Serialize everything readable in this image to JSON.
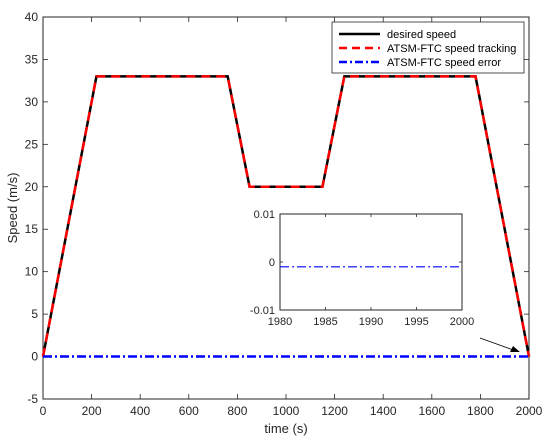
{
  "chart_data": [
    {
      "type": "line",
      "title": "",
      "xlabel": "time (s)",
      "ylabel": "Speed (m/s)",
      "xlim": [
        0,
        2000
      ],
      "ylim": [
        -5,
        40
      ],
      "xticks": [
        "0",
        "200",
        "400",
        "600",
        "800",
        "1000",
        "1200",
        "1400",
        "1600",
        "1800",
        "2000"
      ],
      "yticks": [
        "-5",
        "0",
        "5",
        "10",
        "15",
        "20",
        "25",
        "30",
        "35",
        "40"
      ],
      "grid": false,
      "legend_position": "top-right",
      "series": [
        {
          "name": "desired speed",
          "color": "#000000",
          "style": "solid",
          "x": [
            0,
            220,
            760,
            850,
            1150,
            1240,
            1780,
            2000
          ],
          "y": [
            0,
            33,
            33,
            20,
            20,
            33,
            33,
            0
          ]
        },
        {
          "name": "ATSM-FTC speed tracking",
          "color": "#ff0000",
          "style": "dashed",
          "x": [
            0,
            220,
            760,
            850,
            1150,
            1240,
            1780,
            2000
          ],
          "y": [
            0,
            33,
            33,
            20,
            20,
            33,
            33,
            0
          ]
        },
        {
          "name": "ATSM-FTC speed error",
          "color": "#0000ff",
          "style": "dashdot",
          "x": [
            0,
            2000
          ],
          "y": [
            0,
            0
          ]
        }
      ]
    },
    {
      "type": "line",
      "title": "",
      "xlabel": "",
      "ylabel": "",
      "xlim": [
        1980,
        2000
      ],
      "ylim": [
        -0.01,
        0.01
      ],
      "xticks": [
        "1980",
        "1985",
        "1990",
        "1995",
        "2000"
      ],
      "yticks": [
        "-0.01",
        "0",
        "0.01"
      ],
      "series": [
        {
          "color": "#0000ff",
          "style": "dashdot",
          "x": [
            1980,
            2000
          ],
          "y": [
            -0.001,
            -0.001
          ]
        }
      ]
    }
  ]
}
